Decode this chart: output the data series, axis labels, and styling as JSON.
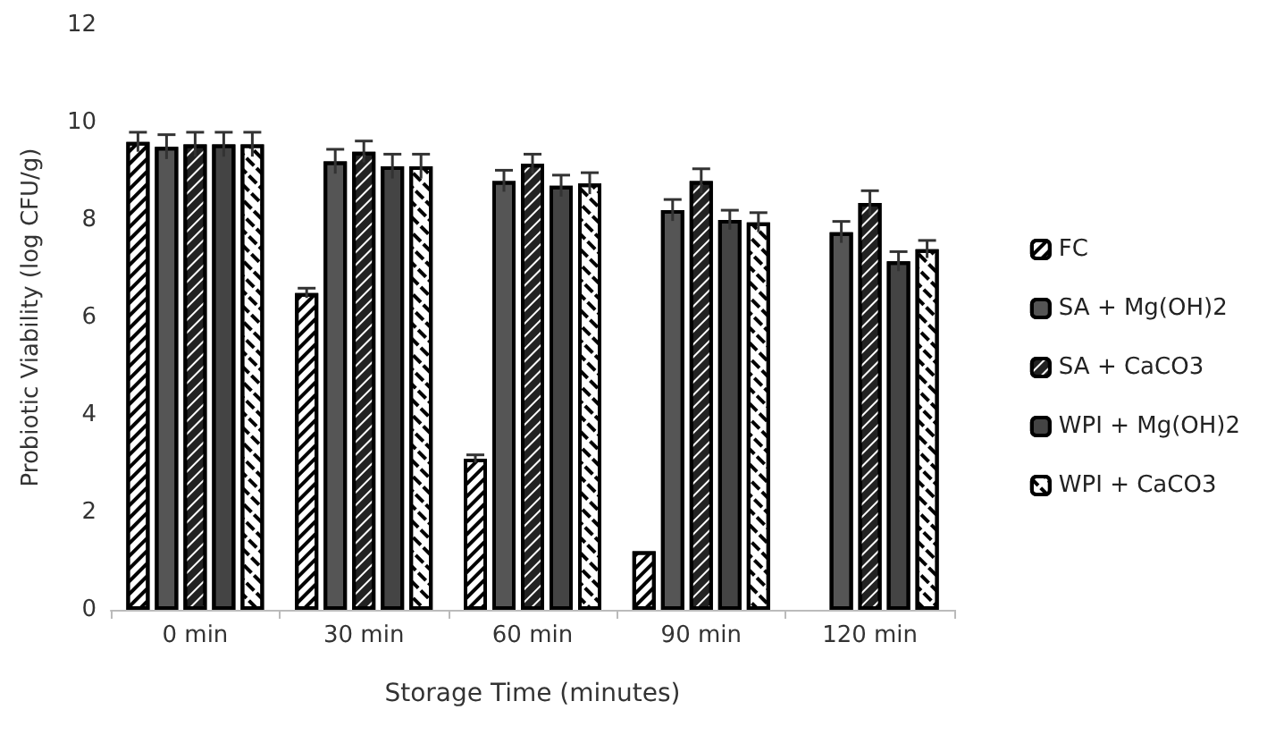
{
  "chart_data": {
    "type": "bar",
    "xlabel": "Storage Time (minutes)",
    "ylabel": "Probiotic Viability (log CFU/g)",
    "categories": [
      "0 min",
      "30 min",
      "60 min",
      "90 min",
      "120 min"
    ],
    "ylim": [
      0,
      12
    ],
    "yticks": [
      0,
      2,
      4,
      6,
      8,
      10,
      12
    ],
    "grid": false,
    "legend": "right",
    "series": [
      {
        "name": "FC",
        "color": "#ffffff",
        "values": [
          9.6,
          6.5,
          3.1,
          1.2,
          null
        ],
        "errors": [
          0.2,
          0.1,
          0.08,
          null,
          null
        ]
      },
      {
        "name": "SA + Mg(OH)2",
        "color": "#555555",
        "values": [
          9.5,
          9.2,
          8.8,
          8.2,
          7.75
        ],
        "errors": [
          0.25,
          0.25,
          0.22,
          0.22,
          0.22
        ]
      },
      {
        "name": "SA + CaCO3",
        "color": "#222222",
        "values": [
          9.55,
          9.4,
          9.15,
          8.8,
          8.35
        ],
        "errors": [
          0.25,
          0.22,
          0.2,
          0.25,
          0.25
        ]
      },
      {
        "name": "WPI + Mg(OH)2",
        "color": "#444444",
        "values": [
          9.55,
          9.1,
          8.7,
          8.0,
          7.15
        ],
        "errors": [
          0.25,
          0.25,
          0.22,
          0.2,
          0.2
        ]
      },
      {
        "name": "WPI + CaCO3",
        "color": "#ffffff",
        "values": [
          9.55,
          9.1,
          8.75,
          7.95,
          7.4
        ],
        "errors": [
          0.25,
          0.25,
          0.22,
          0.2,
          0.18
        ]
      }
    ]
  }
}
